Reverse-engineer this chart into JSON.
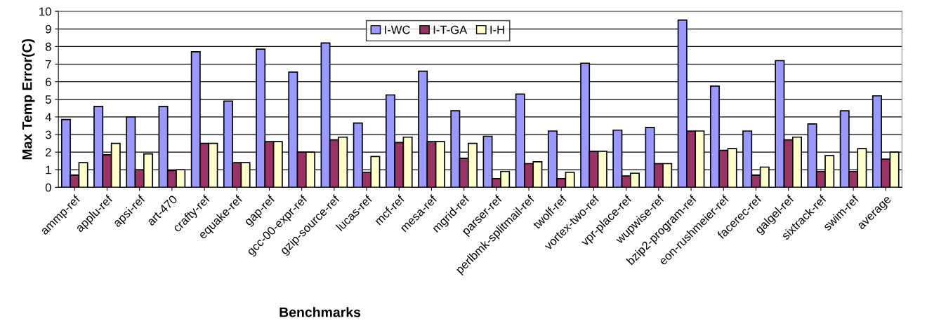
{
  "chart_data": {
    "type": "bar",
    "xlabel": "Benchmarks",
    "ylabel": "Max Temp Error(C)",
    "categories": [
      "ammp-ref",
      "applu-ref",
      "apsi-ref",
      "art-470",
      "crafty-ref",
      "equake-ref",
      "gap-ref",
      "gcc-00-expr-ref",
      "gzip-source-ref",
      "lucas-ref",
      "mcf-ref",
      "mesa-ref",
      "mgrid-ref",
      "parser-ref",
      "perlbmk-splitmail-ref",
      "twolf-ref",
      "vortex-two-ref",
      "vpr-place-ref",
      "wupwise-ref",
      "bzip2-program-ref",
      "eon-rushmeier-ref",
      "facerec-ref",
      "galgel-ref",
      "sixtrack-ref",
      "swim-ref",
      "average"
    ],
    "series": [
      {
        "name": "I-WC",
        "color": "#9999ff",
        "values": [
          3.85,
          4.6,
          4.0,
          4.6,
          7.7,
          4.9,
          7.85,
          6.55,
          8.2,
          3.65,
          5.25,
          6.6,
          4.35,
          2.9,
          5.3,
          3.2,
          7.05,
          3.25,
          3.4,
          9.5,
          5.75,
          3.2,
          7.2,
          3.6,
          4.35,
          5.2
        ]
      },
      {
        "name": "I-T-GA",
        "color": "#993366",
        "values": [
          0.7,
          1.85,
          1.0,
          0.95,
          2.5,
          1.4,
          2.6,
          2.0,
          2.7,
          0.85,
          2.55,
          2.6,
          1.65,
          0.5,
          1.35,
          0.5,
          2.05,
          0.65,
          1.35,
          3.2,
          2.1,
          0.7,
          2.7,
          0.9,
          0.9,
          1.6
        ]
      },
      {
        "name": "I-H",
        "color": "#ffffcc",
        "values": [
          1.4,
          2.5,
          1.9,
          1.0,
          2.5,
          1.4,
          2.6,
          2.0,
          2.85,
          1.75,
          2.85,
          2.6,
          2.5,
          0.9,
          1.45,
          0.85,
          2.05,
          0.8,
          1.35,
          3.2,
          2.2,
          1.15,
          2.85,
          1.8,
          2.2,
          2.0
        ]
      }
    ],
    "ylim": [
      0,
      10
    ],
    "yticks": [
      0,
      1,
      2,
      3,
      4,
      5,
      6,
      7,
      8,
      9,
      10
    ],
    "grid": "y",
    "legend": "top"
  }
}
